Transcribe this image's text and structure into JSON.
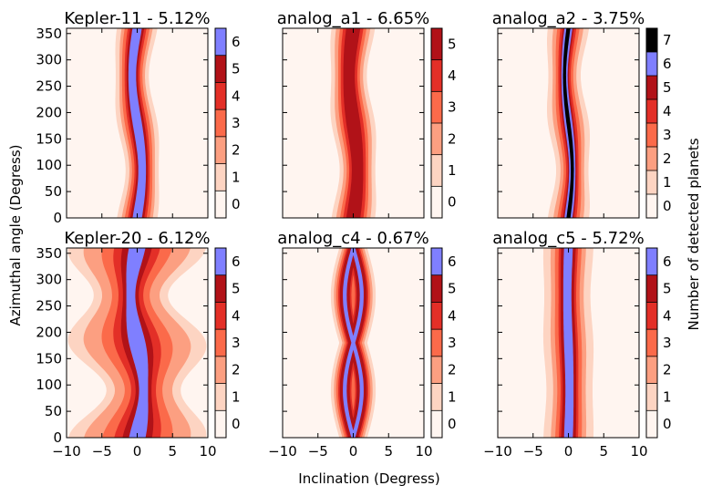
{
  "chart_data": {
    "type": "contour",
    "xlabel": "Inclination (Degress)",
    "ylabel": "Azimuthal angle (Degress)",
    "colorbar_label": "Number of detected planets",
    "xlim": [
      -10,
      10
    ],
    "ylim": [
      0,
      360
    ],
    "xticks": [
      -10,
      -5,
      0,
      5,
      10
    ],
    "xtick_labels": [
      "−10",
      "−5",
      "0",
      "5",
      "10"
    ],
    "yticks": [
      0,
      50,
      100,
      150,
      200,
      250,
      300,
      350
    ],
    "yticks_labels": [
      "0",
      "50",
      "100",
      "150",
      "200",
      "250",
      "300",
      "350"
    ],
    "level_colors": [
      "#fff5f0",
      "#fdd4c2",
      "#fc9f81",
      "#fb6a4a",
      "#e32f27",
      "#b11218",
      "#7f7fff"
    ],
    "panels": [
      {
        "title": "Kepler-11 - 5.12%",
        "max_planets": 6,
        "center_amplitude": 0.7,
        "band_halfwidths": [
          2.6,
          2.0,
          1.6,
          1.2,
          0.9,
          0.6
        ],
        "width_modulation": 0.1,
        "crossing": false
      },
      {
        "title": "analog_a1 - 6.65%",
        "max_planets": 5,
        "center_amplitude": 0.6,
        "band_halfwidths": [
          2.8,
          2.2,
          1.7,
          1.3,
          0.9
        ],
        "width_modulation": 0.1,
        "crossing": false
      },
      {
        "title": "analog_a2 - 3.75%",
        "max_planets": 7,
        "center_amplitude": 0.55,
        "band_halfwidths": [
          2.6,
          1.9,
          1.4,
          1.0,
          0.7,
          0.5,
          0.25
        ],
        "width_modulation": 0.12,
        "crossing": false
      },
      {
        "title": "Kepler-20 - 6.12%",
        "max_planets": 6,
        "center_amplitude": 0.9,
        "band_halfwidths": [
          7.5,
          5.8,
          3.8,
          2.5,
          1.6,
          0.9
        ],
        "width_modulation": 0.3,
        "crossing": false
      },
      {
        "title": "analog_c4 - 0.67%",
        "max_planets": 6,
        "center_amplitude": 0.0,
        "band_halfwidths": [
          3.6,
          2.8,
          2.2,
          1.7,
          1.3,
          0.5
        ],
        "width_modulation": 0.1,
        "crossing": true,
        "crossing_amplitude": 1.2
      },
      {
        "title": "analog_c5 - 5.72%",
        "max_planets": 6,
        "center_amplitude": 0.15,
        "band_halfwidths": [
          3.4,
          2.4,
          1.8,
          1.3,
          1.0,
          0.6
        ],
        "width_modulation": 0.04,
        "crossing": false
      }
    ]
  }
}
